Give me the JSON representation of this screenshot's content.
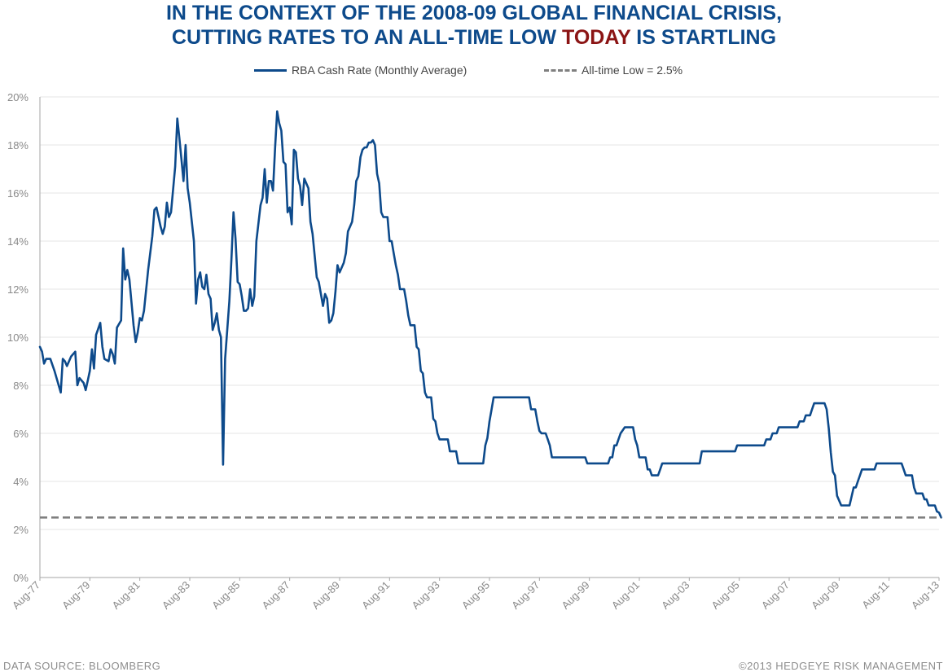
{
  "header": {
    "title_line1": "IN THE CONTEXT OF THE 2008-09 GLOBAL FINANCIAL CRISIS,",
    "title_line2_pre": "CUTTING RATES TO AN ALL-TIME LOW ",
    "title_line2_highlight": "TODAY",
    "title_line2_post": " IS STARTLING"
  },
  "footer": {
    "source": "DATA SOURCE:  BLOOMBERG",
    "copyright": "©2013 HEDGEYE  RISK MANAGEMENT"
  },
  "colors": {
    "title": "#0d4a8b",
    "highlight": "#8b1414",
    "series_line": "#0d4a8b",
    "low_line": "#7f7f7f"
  },
  "chart_data": {
    "type": "line",
    "title": "IN THE CONTEXT OF THE 2008-09 GLOBAL FINANCIAL CRISIS, CUTTING RATES TO AN ALL-TIME LOW TODAY IS STARTLING",
    "xlabel": "",
    "ylabel": "",
    "x_ticks": [
      "Aug-77",
      "Aug-79",
      "Aug-81",
      "Aug-83",
      "Aug-85",
      "Aug-87",
      "Aug-89",
      "Aug-91",
      "Aug-93",
      "Aug-95",
      "Aug-97",
      "Aug-99",
      "Aug-01",
      "Aug-03",
      "Aug-05",
      "Aug-07",
      "Aug-09",
      "Aug-11",
      "Aug-13"
    ],
    "y_ticks": [
      "0%",
      "2%",
      "4%",
      "6%",
      "8%",
      "10%",
      "12%",
      "14%",
      "16%",
      "18%",
      "20%"
    ],
    "xlim": [
      "1977-08",
      "2013-08"
    ],
    "ylim": [
      0,
      20
    ],
    "grid": true,
    "legend_position": "top-center",
    "series": [
      {
        "name": "RBA Cash Rate (Monthly Average)",
        "style": "solid",
        "points": [
          [
            "1977-08",
            9.6
          ],
          [
            "1977-09",
            9.4
          ],
          [
            "1977-10",
            8.9
          ],
          [
            "1977-11",
            9.1
          ],
          [
            "1978-01",
            9.1
          ],
          [
            "1978-03",
            8.6
          ],
          [
            "1978-06",
            7.7
          ],
          [
            "1978-07",
            9.1
          ],
          [
            "1978-08",
            9.0
          ],
          [
            "1978-09",
            8.8
          ],
          [
            "1978-11",
            9.2
          ],
          [
            "1979-01",
            9.4
          ],
          [
            "1979-02",
            8.0
          ],
          [
            "1979-03",
            8.3
          ],
          [
            "1979-05",
            8.1
          ],
          [
            "1979-06",
            7.8
          ],
          [
            "1979-07",
            8.2
          ],
          [
            "1979-08",
            8.6
          ],
          [
            "1979-09",
            9.5
          ],
          [
            "1979-10",
            8.7
          ],
          [
            "1979-11",
            10.1
          ],
          [
            "1980-01",
            10.6
          ],
          [
            "1980-02",
            9.6
          ],
          [
            "1980-03",
            9.1
          ],
          [
            "1980-05",
            9.0
          ],
          [
            "1980-06",
            9.5
          ],
          [
            "1980-07",
            9.3
          ],
          [
            "1980-08",
            8.9
          ],
          [
            "1980-09",
            10.4
          ],
          [
            "1980-11",
            10.7
          ],
          [
            "1980-12",
            13.7
          ],
          [
            "1981-01",
            12.4
          ],
          [
            "1981-02",
            12.8
          ],
          [
            "1981-03",
            12.4
          ],
          [
            "1981-05",
            10.5
          ],
          [
            "1981-06",
            9.8
          ],
          [
            "1981-07",
            10.2
          ],
          [
            "1981-08",
            10.8
          ],
          [
            "1981-09",
            10.7
          ],
          [
            "1981-10",
            11.1
          ],
          [
            "1981-12",
            12.8
          ],
          [
            "1982-02",
            14.2
          ],
          [
            "1982-03",
            15.3
          ],
          [
            "1982-04",
            15.4
          ],
          [
            "1982-05",
            15.0
          ],
          [
            "1982-06",
            14.6
          ],
          [
            "1982-07",
            14.3
          ],
          [
            "1982-08",
            14.6
          ],
          [
            "1982-09",
            15.6
          ],
          [
            "1982-10",
            15.0
          ],
          [
            "1982-11",
            15.2
          ],
          [
            "1983-01",
            17.1
          ],
          [
            "1983-02",
            19.1
          ],
          [
            "1983-03",
            18.3
          ],
          [
            "1983-04",
            17.4
          ],
          [
            "1983-05",
            16.5
          ],
          [
            "1983-06",
            18.0
          ],
          [
            "1983-07",
            16.2
          ],
          [
            "1983-08",
            15.6
          ],
          [
            "1983-10",
            14.0
          ],
          [
            "1983-11",
            11.4
          ],
          [
            "1983-12",
            12.4
          ],
          [
            "1984-01",
            12.7
          ],
          [
            "1984-02",
            12.1
          ],
          [
            "1984-03",
            12.0
          ],
          [
            "1984-04",
            12.6
          ],
          [
            "1984-05",
            11.8
          ],
          [
            "1984-06",
            11.6
          ],
          [
            "1984-07",
            10.3
          ],
          [
            "1984-08",
            10.6
          ],
          [
            "1984-09",
            11.0
          ],
          [
            "1984-10",
            10.3
          ],
          [
            "1984-11",
            10.0
          ],
          [
            "1984-12",
            4.7
          ],
          [
            "1985-01",
            9.1
          ],
          [
            "1985-03",
            11.5
          ],
          [
            "1985-04",
            13.2
          ],
          [
            "1985-05",
            15.2
          ],
          [
            "1985-06",
            14.1
          ],
          [
            "1985-07",
            12.3
          ],
          [
            "1985-08",
            12.2
          ],
          [
            "1985-09",
            11.7
          ],
          [
            "1985-10",
            11.1
          ],
          [
            "1985-11",
            11.1
          ],
          [
            "1985-12",
            11.2
          ],
          [
            "1986-01",
            12.0
          ],
          [
            "1986-02",
            11.3
          ],
          [
            "1986-03",
            11.7
          ],
          [
            "1986-04",
            14.0
          ],
          [
            "1986-06",
            15.5
          ],
          [
            "1986-07",
            15.8
          ],
          [
            "1986-08",
            17.0
          ],
          [
            "1986-09",
            15.6
          ],
          [
            "1986-10",
            16.5
          ],
          [
            "1986-11",
            16.5
          ],
          [
            "1986-12",
            16.1
          ],
          [
            "1987-01",
            17.9
          ],
          [
            "1987-02",
            19.4
          ],
          [
            "1987-03",
            18.9
          ],
          [
            "1987-04",
            18.6
          ],
          [
            "1987-05",
            17.3
          ],
          [
            "1987-06",
            17.2
          ],
          [
            "1987-07",
            15.2
          ],
          [
            "1987-08",
            15.4
          ],
          [
            "1987-09",
            14.7
          ],
          [
            "1987-10",
            17.8
          ],
          [
            "1987-11",
            17.7
          ],
          [
            "1987-12",
            16.6
          ],
          [
            "1988-01",
            16.3
          ],
          [
            "1988-02",
            15.5
          ],
          [
            "1988-03",
            16.6
          ],
          [
            "1988-05",
            16.2
          ],
          [
            "1988-06",
            14.8
          ],
          [
            "1988-07",
            14.3
          ],
          [
            "1988-09",
            12.5
          ],
          [
            "1988-10",
            12.3
          ],
          [
            "1988-11",
            11.8
          ],
          [
            "1988-12",
            11.3
          ],
          [
            "1989-01",
            11.8
          ],
          [
            "1989-02",
            11.6
          ],
          [
            "1989-03",
            10.6
          ],
          [
            "1989-04",
            10.7
          ],
          [
            "1989-05",
            11.0
          ],
          [
            "1989-06",
            11.9
          ],
          [
            "1989-07",
            13.0
          ],
          [
            "1989-08",
            12.7
          ],
          [
            "1989-09",
            12.9
          ],
          [
            "1989-10",
            13.1
          ],
          [
            "1989-11",
            13.5
          ],
          [
            "1989-12",
            14.4
          ],
          [
            "1990-02",
            14.8
          ],
          [
            "1990-03",
            15.5
          ],
          [
            "1990-04",
            16.5
          ],
          [
            "1990-05",
            16.7
          ],
          [
            "1990-06",
            17.5
          ],
          [
            "1990-07",
            17.8
          ],
          [
            "1990-08",
            17.9
          ],
          [
            "1990-09",
            17.9
          ],
          [
            "1990-10",
            18.1
          ],
          [
            "1990-11",
            18.1
          ],
          [
            "1990-12",
            18.2
          ],
          [
            "1991-01",
            18.0
          ],
          [
            "1991-02",
            16.8
          ],
          [
            "1991-03",
            16.4
          ],
          [
            "1991-04",
            15.2
          ],
          [
            "1991-05",
            15.0
          ],
          [
            "1991-07",
            15.0
          ],
          [
            "1991-08",
            14.0
          ],
          [
            "1991-09",
            14.0
          ],
          [
            "1991-10",
            13.5
          ],
          [
            "1991-11",
            13.0
          ],
          [
            "1991-12",
            12.6
          ],
          [
            "1992-01",
            12.0
          ],
          [
            "1992-03",
            12.0
          ],
          [
            "1992-04",
            11.5
          ],
          [
            "1992-05",
            10.9
          ],
          [
            "1992-06",
            10.5
          ],
          [
            "1992-08",
            10.5
          ],
          [
            "1992-09",
            9.6
          ],
          [
            "1992-10",
            9.5
          ],
          [
            "1992-11",
            8.6
          ],
          [
            "1992-12",
            8.5
          ],
          [
            "1993-01",
            7.7
          ],
          [
            "1993-02",
            7.5
          ],
          [
            "1993-04",
            7.5
          ],
          [
            "1993-05",
            6.6
          ],
          [
            "1993-06",
            6.5
          ],
          [
            "1993-07",
            6.0
          ],
          [
            "1993-08",
            5.75
          ],
          [
            "1993-12",
            5.75
          ],
          [
            "1994-01",
            5.25
          ],
          [
            "1994-04",
            5.25
          ],
          [
            "1994-05",
            4.75
          ],
          [
            "1995-05",
            4.75
          ],
          [
            "1995-06",
            5.5
          ],
          [
            "1995-07",
            5.8
          ],
          [
            "1995-08",
            6.5
          ],
          [
            "1995-09",
            7.0
          ],
          [
            "1995-10",
            7.5
          ],
          [
            "1997-03",
            7.5
          ],
          [
            "1997-04",
            7.0
          ],
          [
            "1997-06",
            7.0
          ],
          [
            "1997-07",
            6.5
          ],
          [
            "1997-08",
            6.1
          ],
          [
            "1997-09",
            6.0
          ],
          [
            "1997-11",
            6.0
          ],
          [
            "1997-12",
            5.75
          ],
          [
            "1998-01",
            5.5
          ],
          [
            "1998-02",
            5.0
          ],
          [
            "1999-06",
            5.0
          ],
          [
            "1999-07",
            4.75
          ],
          [
            "2000-05",
            4.75
          ],
          [
            "2000-06",
            5.0
          ],
          [
            "2000-07",
            5.0
          ],
          [
            "2000-08",
            5.5
          ],
          [
            "2000-09",
            5.5
          ],
          [
            "2000-10",
            5.75
          ],
          [
            "2000-11",
            6.0
          ],
          [
            "2001-01",
            6.25
          ],
          [
            "2001-05",
            6.25
          ],
          [
            "2001-06",
            5.75
          ],
          [
            "2001-07",
            5.5
          ],
          [
            "2001-08",
            5.0
          ],
          [
            "2001-11",
            5.0
          ],
          [
            "2001-12",
            4.5
          ],
          [
            "2002-01",
            4.5
          ],
          [
            "2002-02",
            4.25
          ],
          [
            "2002-05",
            4.25
          ],
          [
            "2002-06",
            4.5
          ],
          [
            "2002-07",
            4.75
          ],
          [
            "2004-01",
            4.75
          ],
          [
            "2004-02",
            5.25
          ],
          [
            "2005-06",
            5.25
          ],
          [
            "2005-07",
            5.5
          ],
          [
            "2006-08",
            5.5
          ],
          [
            "2006-09",
            5.75
          ],
          [
            "2006-11",
            5.75
          ],
          [
            "2006-12",
            6.0
          ],
          [
            "2007-02",
            6.0
          ],
          [
            "2007-03",
            6.25
          ],
          [
            "2007-12",
            6.25
          ],
          [
            "2008-01",
            6.5
          ],
          [
            "2008-03",
            6.5
          ],
          [
            "2008-04",
            6.75
          ],
          [
            "2008-06",
            6.75
          ],
          [
            "2008-07",
            7.0
          ],
          [
            "2008-08",
            7.25
          ],
          [
            "2009-01",
            7.25
          ],
          [
            "2009-02",
            7.0
          ],
          [
            "2009-03",
            6.2
          ],
          [
            "2009-04",
            5.2
          ],
          [
            "2009-05",
            4.4
          ],
          [
            "2009-06",
            4.25
          ],
          [
            "2009-07",
            3.4
          ],
          [
            "2009-09",
            3.0
          ],
          [
            "2010-01",
            3.0
          ],
          [
            "2010-03",
            3.75
          ],
          [
            "2010-04",
            3.75
          ],
          [
            "2010-05",
            4.0
          ],
          [
            "2010-06",
            4.25
          ],
          [
            "2010-07",
            4.5
          ],
          [
            "2011-01",
            4.5
          ],
          [
            "2011-02",
            4.75
          ],
          [
            "2012-02",
            4.75
          ],
          [
            "2012-03",
            4.5
          ],
          [
            "2012-04",
            4.25
          ],
          [
            "2012-07",
            4.25
          ],
          [
            "2012-08",
            3.75
          ],
          [
            "2012-09",
            3.5
          ],
          [
            "2012-12",
            3.5
          ],
          [
            "2013-01",
            3.25
          ],
          [
            "2013-02",
            3.25
          ],
          [
            "2013-03",
            3.0
          ],
          [
            "2013-06",
            3.0
          ],
          [
            "2013-07",
            2.75
          ],
          [
            "2013-08",
            2.7
          ],
          [
            "2013-09",
            2.5
          ]
        ]
      },
      {
        "name": "All-time Low = 2.5%",
        "style": "dashed",
        "points": [
          [
            "1977-08",
            2.5
          ],
          [
            "2013-09",
            2.5
          ]
        ]
      }
    ]
  }
}
